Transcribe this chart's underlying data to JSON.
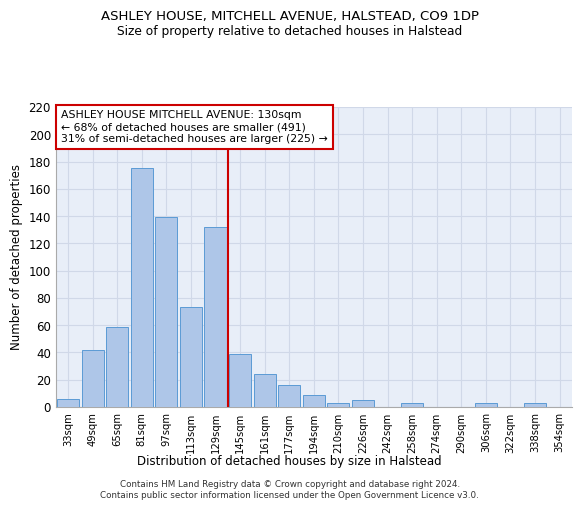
{
  "title1": "ASHLEY HOUSE, MITCHELL AVENUE, HALSTEAD, CO9 1DP",
  "title2": "Size of property relative to detached houses in Halstead",
  "xlabel": "Distribution of detached houses by size in Halstead",
  "ylabel": "Number of detached properties",
  "footnote1": "Contains HM Land Registry data © Crown copyright and database right 2024.",
  "footnote2": "Contains public sector information licensed under the Open Government Licence v3.0.",
  "annotation_line1": "ASHLEY HOUSE MITCHELL AVENUE: 130sqm",
  "annotation_line2": "← 68% of detached houses are smaller (491)",
  "annotation_line3": "31% of semi-detached houses are larger (225) →",
  "bar_labels": [
    "33sqm",
    "49sqm",
    "65sqm",
    "81sqm",
    "97sqm",
    "113sqm",
    "129sqm",
    "145sqm",
    "161sqm",
    "177sqm",
    "194sqm",
    "210sqm",
    "226sqm",
    "242sqm",
    "258sqm",
    "274sqm",
    "290sqm",
    "306sqm",
    "322sqm",
    "338sqm",
    "354sqm"
  ],
  "bar_values": [
    6,
    42,
    59,
    175,
    139,
    73,
    132,
    39,
    24,
    16,
    9,
    3,
    5,
    0,
    3,
    0,
    0,
    3,
    0,
    3,
    0
  ],
  "bar_color": "#aec6e8",
  "bar_edge_color": "#5b9bd5",
  "vline_color": "#cc0000",
  "annotation_box_color": "#cc0000",
  "ylim": [
    0,
    220
  ],
  "yticks": [
    0,
    20,
    40,
    60,
    80,
    100,
    120,
    140,
    160,
    180,
    200,
    220
  ],
  "grid_color": "#d0d8e8",
  "background_color": "#e8eef8"
}
